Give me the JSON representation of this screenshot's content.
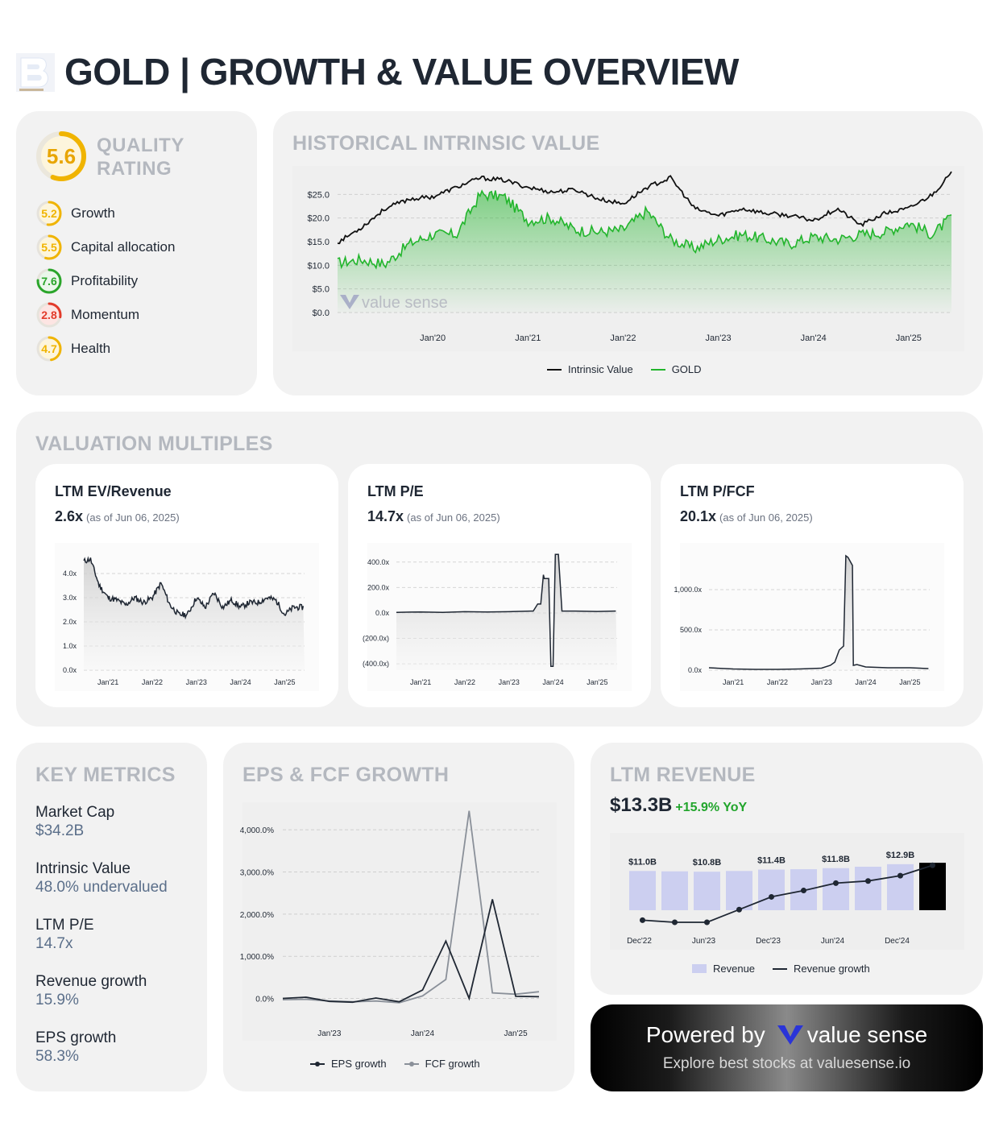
{
  "header": {
    "title": "GOLD | GROWTH & VALUE OVERVIEW",
    "logo_icon": "valuesense-b-logo"
  },
  "quality": {
    "title_line1": "QUALITY",
    "title_line2": "RATING",
    "score": "5.6",
    "score_value": 5.6,
    "items": [
      {
        "label": "Growth",
        "score": "5.2",
        "value": 5.2,
        "color": "#f0b400"
      },
      {
        "label": "Capital allocation",
        "score": "5.5",
        "value": 5.5,
        "color": "#f0b400"
      },
      {
        "label": "Profitability",
        "score": "7.6",
        "value": 7.6,
        "color": "#2aa52a"
      },
      {
        "label": "Momentum",
        "score": "2.8",
        "value": 2.8,
        "color": "#e23a2a"
      },
      {
        "label": "Health",
        "score": "4.7",
        "value": 4.7,
        "color": "#f0b400"
      }
    ]
  },
  "historical": {
    "title": "HISTORICAL INTRINSIC VALUE",
    "watermark": "value sense",
    "legend": {
      "intrinsic": "Intrinsic Value",
      "price": "GOLD"
    }
  },
  "valuation": {
    "title": "VALUATION MULTIPLES",
    "cards": [
      {
        "title": "LTM EV/Revenue",
        "value": "2.6x",
        "asof": "(as of Jun 06, 2025)"
      },
      {
        "title": "LTM P/E",
        "value": "14.7x",
        "asof": "(as of Jun 06, 2025)"
      },
      {
        "title": "LTM P/FCF",
        "value": "20.1x",
        "asof": "(as of Jun 06, 2025)"
      }
    ]
  },
  "key_metrics": {
    "title": "KEY METRICS",
    "items": [
      {
        "label": "Market Cap",
        "value": "$34.2B"
      },
      {
        "label": "Intrinsic Value",
        "value": "48.0% undervalued"
      },
      {
        "label": "LTM P/E",
        "value": "14.7x"
      },
      {
        "label": "Revenue growth",
        "value": "15.9%"
      },
      {
        "label": "EPS growth",
        "value": "58.3%"
      }
    ]
  },
  "eps_fcf": {
    "title": "EPS & FCF GROWTH",
    "legend": {
      "eps": "EPS growth",
      "fcf": "FCF growth"
    }
  },
  "ltm_revenue": {
    "title": "LTM REVENUE",
    "value": "$13.3B",
    "yoy": "+15.9% YoY",
    "legend": {
      "revenue": "Revenue",
      "growth": "Revenue growth"
    }
  },
  "powered": {
    "text": "Powered by",
    "brand": "value sense",
    "subtitle": "Explore best stocks at valuesense.io"
  },
  "colors": {
    "intrinsic": "#111111",
    "price": "#22b52c",
    "bar": "#cccff0",
    "bar_last": "#000000",
    "eps": "#1f2733",
    "fcf": "#8a9099",
    "muted_title": "#b4b8bf"
  },
  "chart_data": [
    {
      "id": "historical",
      "type": "line",
      "xlabel": "",
      "ylabel": "",
      "x_ticks": [
        "Jan'20",
        "Jan'21",
        "Jan'22",
        "Jan'23",
        "Jan'24",
        "Jan'25"
      ],
      "y_ticks": [
        "$0.0",
        "$5.0",
        "$10.0",
        "$15.0",
        "$20.0",
        "$25.0"
      ],
      "ylim": [
        0,
        30
      ],
      "x": [
        2019.0,
        2019.25,
        2019.5,
        2019.75,
        2020.0,
        2020.25,
        2020.5,
        2020.75,
        2021.0,
        2021.25,
        2021.5,
        2021.75,
        2022.0,
        2022.25,
        2022.5,
        2022.75,
        2023.0,
        2023.25,
        2023.5,
        2023.75,
        2024.0,
        2024.25,
        2024.5,
        2024.75,
        2025.0,
        2025.25,
        2025.45
      ],
      "series": [
        {
          "name": "Intrinsic Value",
          "values": [
            14.8,
            18,
            22,
            24,
            24.5,
            26.5,
            28.5,
            28,
            26.5,
            25.5,
            26,
            24,
            23,
            26.5,
            28.5,
            22,
            20.5,
            22,
            21,
            20.5,
            19.5,
            22,
            18.5,
            21,
            22,
            25,
            29.5
          ]
        },
        {
          "name": "GOLD",
          "values": [
            10.5,
            11.2,
            10.2,
            14.5,
            16.5,
            16.5,
            25,
            24.5,
            19.5,
            20,
            17.5,
            17,
            17.5,
            21.5,
            15.5,
            13.5,
            15.5,
            16.5,
            15.5,
            14.5,
            16,
            15.5,
            16.5,
            17,
            19,
            16.5,
            20.2
          ]
        }
      ]
    },
    {
      "id": "ev_revenue",
      "type": "area",
      "x_ticks": [
        "Jan'21",
        "Jan'22",
        "Jan'23",
        "Jan'24",
        "Jan'25"
      ],
      "y_ticks": [
        "0.0x",
        "1.0x",
        "2.0x",
        "3.0x",
        "4.0x"
      ],
      "ylim": [
        0,
        5
      ],
      "x": [
        2020.45,
        2020.6,
        2020.8,
        2021.0,
        2021.2,
        2021.4,
        2021.6,
        2021.8,
        2022.0,
        2022.2,
        2022.4,
        2022.6,
        2022.8,
        2023.0,
        2023.2,
        2023.4,
        2023.6,
        2023.8,
        2024.0,
        2024.2,
        2024.4,
        2024.6,
        2024.8,
        2025.0,
        2025.2,
        2025.42
      ],
      "values": [
        4.5,
        4.6,
        3.5,
        3.0,
        2.9,
        2.7,
        3.0,
        2.8,
        3.0,
        3.6,
        2.7,
        2.3,
        2.3,
        3.0,
        2.6,
        3.2,
        2.6,
        2.9,
        2.6,
        2.8,
        2.8,
        3.0,
        2.9,
        2.3,
        2.6,
        2.6
      ]
    },
    {
      "id": "pe",
      "type": "area",
      "x_ticks": [
        "Jan'21",
        "Jan'22",
        "Jan'23",
        "Jan'24",
        "Jan'25"
      ],
      "y_ticks": [
        "(400.0x)",
        "(200.0x)",
        "0.0x",
        "200.0x",
        "400.0x"
      ],
      "ylim": [
        -450,
        500
      ],
      "x": [
        2020.45,
        2021.0,
        2021.5,
        2022.0,
        2022.5,
        2023.0,
        2023.5,
        2023.55,
        2023.65,
        2023.72,
        2023.78,
        2023.8,
        2023.9,
        2023.95,
        2024.0,
        2024.05,
        2024.12,
        2024.2,
        2024.5,
        2025.0,
        2025.42
      ],
      "values": [
        5,
        8,
        5,
        10,
        8,
        10,
        15,
        15,
        70,
        70,
        300,
        270,
        270,
        -420,
        -420,
        460,
        460,
        15,
        15,
        12,
        14.7
      ]
    },
    {
      "id": "pfcf",
      "type": "area",
      "x_ticks": [
        "Jan'21",
        "Jan'22",
        "Jan'23",
        "Jan'24",
        "Jan'25"
      ],
      "y_ticks": [
        "0.0x",
        "500.0x",
        "1,000.0x"
      ],
      "ylim": [
        0,
        1500
      ],
      "x": [
        2020.45,
        2021.0,
        2021.5,
        2022.0,
        2022.5,
        2023.0,
        2023.2,
        2023.3,
        2023.4,
        2023.5,
        2023.55,
        2023.6,
        2023.7,
        2023.72,
        2023.8,
        2024.0,
        2024.5,
        2025.0,
        2025.42
      ],
      "values": [
        30,
        15,
        10,
        10,
        15,
        25,
        60,
        100,
        250,
        300,
        1420,
        1400,
        1300,
        60,
        70,
        40,
        30,
        30,
        20.1
      ]
    },
    {
      "id": "eps_fcf",
      "type": "line",
      "x_ticks": [
        "Jan'23",
        "Jan'24",
        "Jan'25"
      ],
      "y_ticks": [
        "0.0%",
        "1,000.0%",
        "2,000.0%",
        "3,000.0%",
        "4,000.0%"
      ],
      "ylim": [
        -200,
        4500
      ],
      "x": [
        2022.5,
        2022.75,
        2023.0,
        2023.25,
        2023.5,
        2023.75,
        2024.0,
        2024.25,
        2024.5,
        2024.75,
        2025.0,
        2025.25
      ],
      "series": [
        {
          "name": "EPS growth",
          "values": [
            0,
            30,
            -70,
            -90,
            10,
            -80,
            200,
            1360,
            0,
            2350,
            50,
            40
          ]
        },
        {
          "name": "FCF growth",
          "values": [
            -30,
            -20,
            -60,
            -80,
            -60,
            -100,
            60,
            450,
            4450,
            130,
            100,
            160
          ]
        }
      ]
    },
    {
      "id": "ltm_revenue",
      "type": "bar",
      "categories": [
        "Dec'22",
        "Mar'23",
        "Jun'23",
        "Sep'23",
        "Dec'23",
        "Mar'24",
        "Jun'24",
        "Sep'24",
        "Dec'24",
        "Mar'25"
      ],
      "x_ticks": [
        "Dec'22",
        "Jun'23",
        "Dec'23",
        "Jun'24",
        "Dec'24"
      ],
      "bar_labels": [
        "$11.0B",
        "",
        "$10.8B",
        "",
        "$11.4B",
        "",
        "$11.8B",
        "",
        "$12.9B",
        ""
      ],
      "series": [
        {
          "name": "Revenue",
          "values": [
            11.0,
            10.9,
            10.8,
            11.0,
            11.4,
            11.5,
            11.8,
            12.2,
            12.9,
            13.3
          ]
        },
        {
          "name": "Revenue growth",
          "values": [
            -10.0,
            -11.0,
            -11.0,
            -5.0,
            1.0,
            4.0,
            7.5,
            8.5,
            11.0,
            15.9
          ]
        }
      ]
    }
  ]
}
